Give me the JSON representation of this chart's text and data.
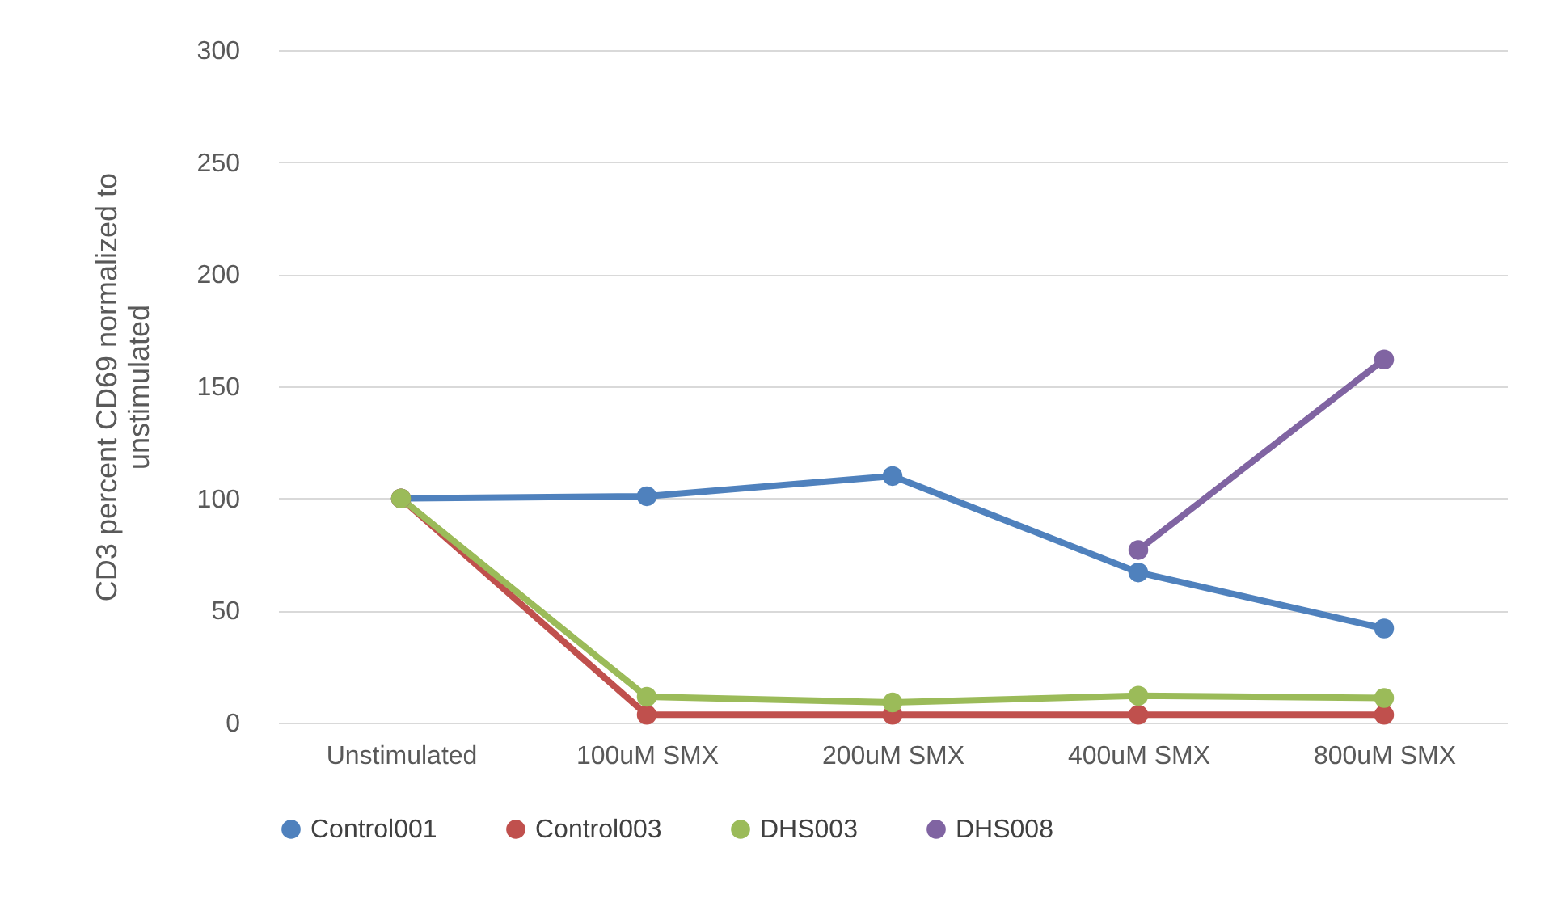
{
  "chart_data": {
    "type": "line",
    "ylabel": "CD3 percent CD69 normalized to unstimulated",
    "categories": [
      "Unstimulated",
      "100uM SMX",
      "200uM SMX",
      "400uM SMX",
      "800uM SMX"
    ],
    "series": [
      {
        "name": "Control001",
        "color": "#4f81bd",
        "values": [
          100,
          101,
          110,
          67,
          42
        ]
      },
      {
        "name": "Control003",
        "color": "#c0504d",
        "values": [
          100,
          3.5,
          3.5,
          3.5,
          3.5
        ]
      },
      {
        "name": "DHS003",
        "color": "#9bbb59",
        "values": [
          100,
          11.5,
          9,
          12,
          11
        ]
      },
      {
        "name": "DHS008",
        "color": "#8064a2",
        "values": [
          null,
          null,
          null,
          77,
          162
        ]
      }
    ],
    "ylim": [
      0,
      300
    ],
    "yticks": [
      0,
      50,
      100,
      150,
      200,
      250,
      300
    ],
    "grid": "y",
    "legend": "bottom",
    "marker": "circle",
    "line_style": "solid"
  }
}
